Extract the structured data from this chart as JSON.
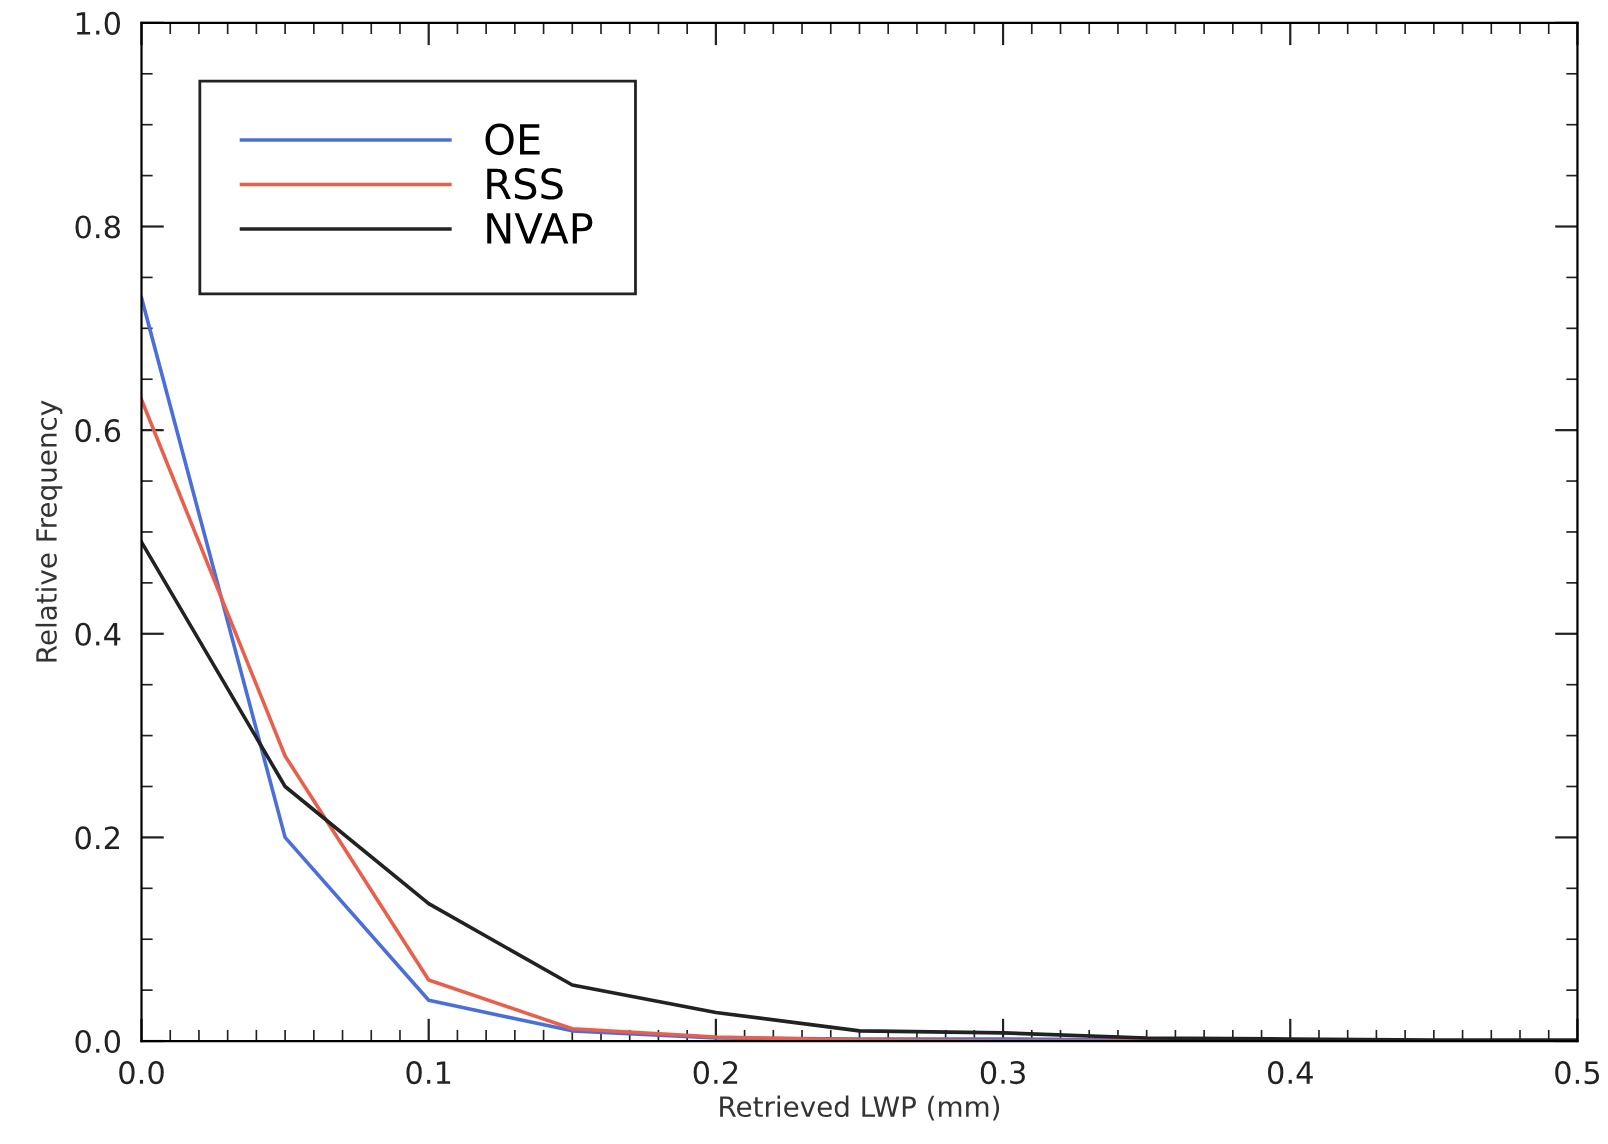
{
  "chart_data": {
    "type": "line",
    "xlabel": "Retrieved LWP (mm)",
    "ylabel": "Relative Frequency",
    "x": [
      0.0,
      0.05,
      0.1,
      0.15,
      0.2,
      0.25,
      0.3,
      0.35,
      0.4,
      0.45,
      0.5
    ],
    "series": [
      {
        "name": "OE",
        "color": "#4a6fd8",
        "values": [
          0.73,
          0.2,
          0.04,
          0.01,
          0.003,
          0.002,
          0.002,
          0.001,
          0.0,
          null,
          null
        ]
      },
      {
        "name": "RSS",
        "color": "#e8604c",
        "values": [
          0.63,
          0.28,
          0.06,
          0.012,
          0.004,
          0.001,
          0.0,
          0.0,
          0.0,
          null,
          null
        ]
      },
      {
        "name": "NVAP",
        "color": "#222222",
        "values": [
          0.49,
          0.25,
          0.135,
          0.055,
          0.028,
          0.01,
          0.008,
          0.003,
          0.002,
          0.001,
          0.001
        ]
      }
    ],
    "xlim": [
      0.0,
      0.5
    ],
    "ylim": [
      0.0,
      1.0
    ],
    "xticks": [
      {
        "value": 0.0,
        "label": "0.0"
      },
      0.1,
      0.2,
      0.3,
      0.4,
      0.5
    ],
    "yticks": [
      {
        "value": 0.0,
        "label": "0.0"
      },
      0.2,
      0.4,
      0.6,
      0.8,
      {
        "value": 1.0,
        "label": "1.0"
      }
    ],
    "legend": "top left",
    "grid": false,
    "marker": "none",
    "line_style": "solid"
  }
}
